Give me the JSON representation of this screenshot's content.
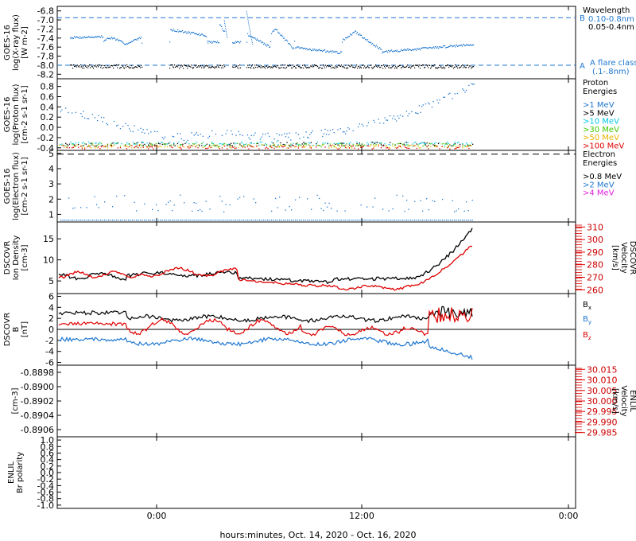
{
  "footer_label": "hours:minutes, Oct. 14, 2020 - Oct. 16, 2020",
  "x_ticks": [
    "0:00",
    "12:00",
    "0:00"
  ],
  "chart_data": [
    {
      "type": "scatter",
      "ylabel": [
        "GOES-16",
        "log(X-ray flux)",
        "[W m-2]"
      ],
      "ylim": [
        -8.3,
        -6.7
      ],
      "yticks": [
        -8.2,
        -8.0,
        -7.8,
        -7.6,
        -7.4,
        -7.2,
        -7.0,
        -6.8
      ],
      "legend_title": [
        "Wavelength"
      ],
      "series": [
        {
          "name": "0.10-0.8nm",
          "color": "#1f77d0",
          "level": -7.55
        },
        {
          "name": "0.05-0.4nm",
          "color": "#000000",
          "level": -8.0
        }
      ],
      "reference_lines": [
        {
          "label": "B",
          "y": -6.95
        },
        {
          "label": "A",
          "y": -8.0
        }
      ],
      "annotation": [
        "A  flare class",
        "(.1-.8nm)"
      ]
    },
    {
      "type": "scatter",
      "ylabel": [
        "GOES-16",
        "log(Proton flux)",
        "[cm-2 s-1 sr-1]"
      ],
      "ylim": [
        -0.45,
        0.95
      ],
      "yticks": [
        -0.4,
        -0.2,
        0.0,
        0.2,
        0.4,
        0.6,
        0.8
      ],
      "legend_title": [
        "Proton",
        "Energies"
      ],
      "series": [
        {
          "name": ">1 MeV",
          "color": "#1f77d0"
        },
        {
          "name": ">5 MeV",
          "color": "#000000"
        },
        {
          "name": ">10 MeV",
          "color": "#00c8e8"
        },
        {
          "name": ">30 MeV",
          "color": "#44c800"
        },
        {
          "name": ">50 MeV",
          "color": "#e8b400"
        },
        {
          "name": ">100 MeV",
          "color": "#e00000"
        }
      ]
    },
    {
      "type": "scatter",
      "ylabel": [
        "GOES-16",
        "log(Electron flux)",
        "[cm-2 s-1 sr-1]"
      ],
      "ylim": [
        0.5,
        5.2
      ],
      "yticks": [
        1,
        2,
        3,
        4,
        5
      ],
      "legend_title": [
        "Electron",
        "Energies"
      ],
      "series": [
        {
          "name": ">0.8 MeV",
          "color": "#000000"
        },
        {
          "name": ">2 MeV",
          "color": "#1f77d0"
        },
        {
          "name": ">4 MeV",
          "color": "#e020e0"
        }
      ]
    },
    {
      "type": "line",
      "ylabel": [
        "DSCOVR",
        "Ion Density",
        "[cm-3]"
      ],
      "ylim": [
        2,
        19
      ],
      "yticks": [
        5,
        10,
        15
      ],
      "right_ylabel": [
        "DSCOVR",
        "Velocity",
        "[km/s]"
      ],
      "right_ylim": [
        257,
        314
      ],
      "right_yticks": [
        260,
        270,
        280,
        290,
        300,
        310
      ],
      "series": [
        {
          "name": "density",
          "color": "#000000"
        },
        {
          "name": "velocity",
          "color": "#e00000"
        }
      ]
    },
    {
      "type": "line",
      "ylabel": [
        "DSCOVR",
        "B",
        "[nT]"
      ],
      "ylim": [
        -6.5,
        6.5
      ],
      "yticks": [
        -6,
        -4,
        -2,
        0,
        2,
        4,
        6
      ],
      "series": [
        {
          "name": "Bx",
          "color": "#000000"
        },
        {
          "name": "By",
          "color": "#1f77d0"
        },
        {
          "name": "Bz",
          "color": "#e00000"
        }
      ]
    },
    {
      "type": "line",
      "ylabel": [
        "[cm-3]"
      ],
      "ylim": [
        -0.8907,
        -0.8897
      ],
      "yticks": [
        -0.8898,
        -0.89,
        -0.8902,
        -0.8904,
        -0.8906
      ],
      "right_ylabel": [
        "ENLIL",
        "Velocity",
        "[km/s]"
      ],
      "right_ylim": [
        29.983,
        30.017
      ],
      "right_yticks": [
        29.985,
        29.99,
        29.995,
        30.0,
        30.005,
        30.01,
        30.015
      ]
    },
    {
      "type": "line",
      "ylabel": [
        "ENLIL",
        "Br polarity"
      ],
      "ylim": [
        -1.1,
        1.1
      ],
      "yticks": [
        -1.0,
        -0.8,
        -0.6,
        -0.4,
        -0.2,
        0.0,
        0.2,
        0.4,
        0.6,
        0.8,
        1.0
      ]
    }
  ]
}
